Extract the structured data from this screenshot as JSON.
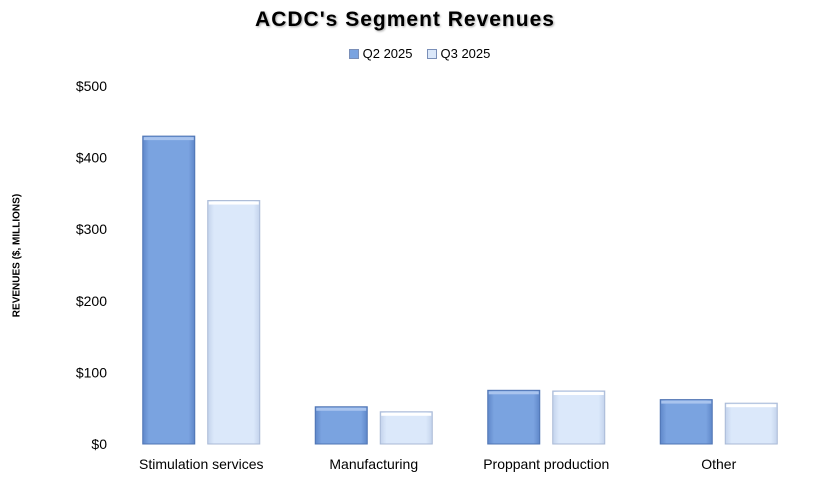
{
  "chart_data": {
    "type": "bar",
    "title": "ACDC's Segment Revenues",
    "xlabel": "",
    "ylabel": "REVENUES ($, MILLIONS)",
    "ylim": [
      0,
      500
    ],
    "yticks": [
      0,
      100,
      200,
      300,
      400,
      500
    ],
    "ytick_labels": [
      "$0",
      "$100",
      "$200",
      "$300",
      "$400",
      "$500"
    ],
    "categories": [
      "Stimulation services",
      "Manufacturing",
      "Proppant production",
      "Other"
    ],
    "series": [
      {
        "name": "Q2 2025",
        "color": "#7aa3e0",
        "values": [
          430,
          52,
          75,
          62
        ]
      },
      {
        "name": "Q3 2025",
        "color": "#dbe8fa",
        "values": [
          340,
          45,
          74,
          57
        ]
      }
    ],
    "grid": false,
    "legend_position": "top"
  }
}
